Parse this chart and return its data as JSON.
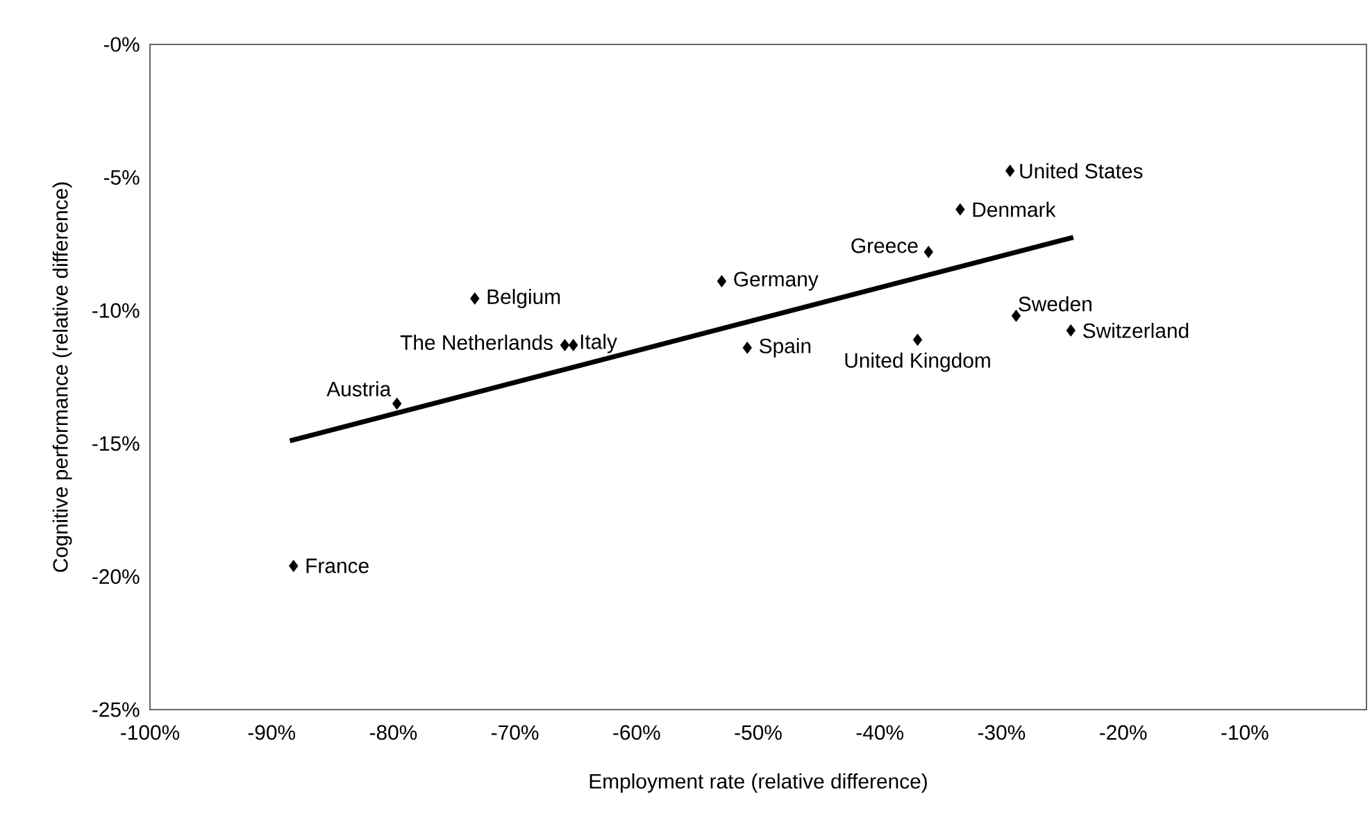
{
  "chart_data": {
    "type": "scatter",
    "xlabel": "Employment rate (relative difference)",
    "ylabel": "Cognitive performance (relative difference)",
    "xlim": [
      -100,
      0
    ],
    "ylim": [
      -25,
      0
    ],
    "xticks": [
      {
        "value": -100,
        "label": "-100%"
      },
      {
        "value": -90,
        "label": "-90%"
      },
      {
        "value": -80,
        "label": "-80%"
      },
      {
        "value": -70,
        "label": "-70%"
      },
      {
        "value": -60,
        "label": "-60%"
      },
      {
        "value": -50,
        "label": "-50%"
      },
      {
        "value": -40,
        "label": "-40%"
      },
      {
        "value": -30,
        "label": "-30%"
      },
      {
        "value": -20,
        "label": "-20%"
      },
      {
        "value": -10,
        "label": "-10%"
      }
    ],
    "yticks": [
      {
        "value": -25,
        "label": "-25%"
      },
      {
        "value": -20,
        "label": "-20%"
      },
      {
        "value": -15,
        "label": "-15%"
      },
      {
        "value": -10,
        "label": "-10%"
      },
      {
        "value": -5,
        "label": "-5%"
      },
      {
        "value": 0,
        "label": "-0%"
      }
    ],
    "grid": false,
    "marker": "diamond",
    "series": [
      {
        "color": "#000000",
        "x": [
          -88.2,
          -79.7,
          -73.3,
          -65.9,
          -65.2,
          -53.0,
          -50.9,
          -36.0,
          -36.9,
          -33.4,
          -29.3,
          -28.8,
          -24.3
        ],
        "values": [
          -19.6,
          -13.5,
          -9.55,
          -11.3,
          -11.3,
          -8.9,
          -11.4,
          -7.8,
          -11.1,
          -6.2,
          -4.75,
          -10.2,
          -10.75
        ]
      },
      {
        "type": "line",
        "marker": "none",
        "color": "#000000",
        "x": [
          -88.5,
          -24.1
        ],
        "values": [
          -14.9,
          -7.25
        ]
      }
    ],
    "annotations": [
      {
        "text": "France",
        "x": -88.2,
        "y": -19.6
      },
      {
        "text": "Austria",
        "x": -79.7,
        "y": -13.5
      },
      {
        "text": "Belgium",
        "x": -73.3,
        "y": -9.55
      },
      {
        "text": "The Netherlands",
        "x": -65.9,
        "y": -11.3
      },
      {
        "text": "Italy",
        "x": -65.2,
        "y": -11.3
      },
      {
        "text": "Germany",
        "x": -53.0,
        "y": -8.9
      },
      {
        "text": "Spain",
        "x": -50.9,
        "y": -11.4
      },
      {
        "text": "Greece",
        "x": -36.0,
        "y": -7.8
      },
      {
        "text": "United Kingdom",
        "x": -36.9,
        "y": -11.1
      },
      {
        "text": "Denmark",
        "x": -33.4,
        "y": -6.2
      },
      {
        "text": "United States",
        "x": -29.3,
        "y": -4.75
      },
      {
        "text": "Sweden",
        "x": -28.8,
        "y": -10.2
      },
      {
        "text": "Switzerland",
        "x": -24.3,
        "y": -10.75
      }
    ]
  }
}
